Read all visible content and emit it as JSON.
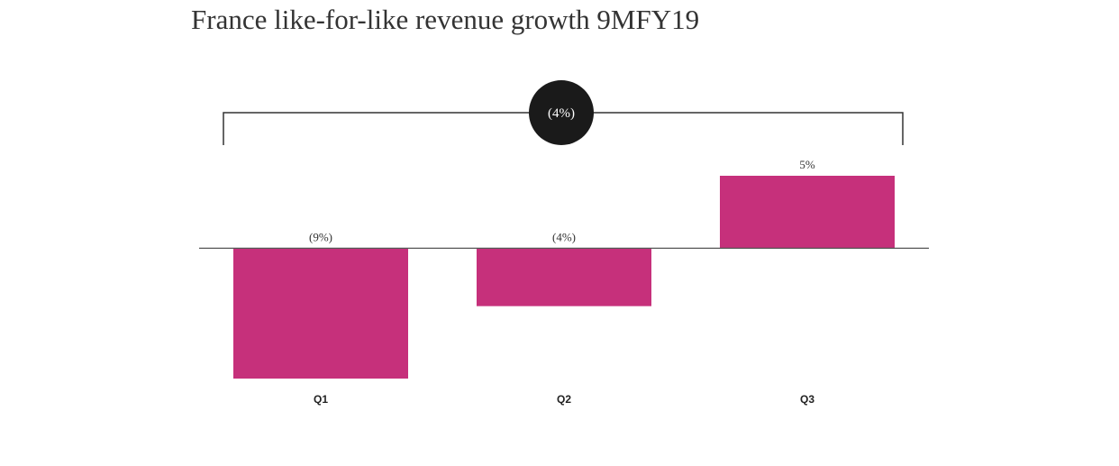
{
  "chart_data": {
    "type": "bar",
    "title": "France like-for-like revenue growth 9MFY19",
    "categories": [
      "Q1",
      "Q2",
      "Q3"
    ],
    "values": [
      -9,
      -4,
      5
    ],
    "value_labels": [
      "(9%)",
      "(4%)",
      "5%"
    ],
    "color": "#c6307b",
    "annotation": "(4%)"
  }
}
